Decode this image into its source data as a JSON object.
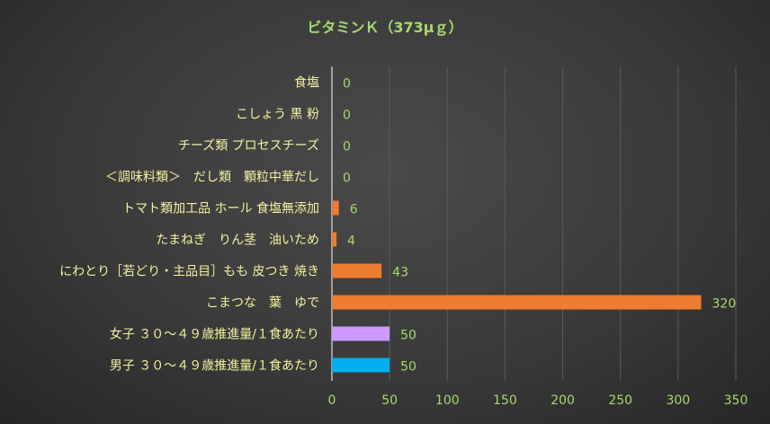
{
  "chart_data": {
    "type": "bar",
    "orientation": "horizontal",
    "title": "ビタミンＫ（373μｇ）",
    "categories": [
      "食塩",
      "こしょう 黒 粉",
      "チーズ類 プロセスチーズ",
      "＜調味料類＞　だし類　顆粒中華だし",
      "トマト類加工品 ホール 食塩無添加",
      "たまねぎ　りん茎　油いため",
      "にわとり［若どり・主品目］もも 皮つき 焼き",
      "こまつな　葉　ゆで",
      "女子 ３０～４９歳推進量/１食あたり",
      "男子 ３０～４９歳推進量/１食あたり"
    ],
    "values": [
      0,
      0,
      0,
      0,
      6,
      4,
      43,
      320,
      50,
      50
    ],
    "value_labels": [
      "0",
      "0",
      "0",
      "0",
      "6",
      "4",
      "43",
      "320",
      "50",
      "50"
    ],
    "bar_colors": [
      "#ed7d31",
      "#ed7d31",
      "#ed7d31",
      "#ed7d31",
      "#ed7d31",
      "#ed7d31",
      "#ed7d31",
      "#ed7d31",
      "#cc99ff",
      "#00b0f0"
    ],
    "xlim": [
      0,
      350
    ],
    "xticks": [
      0,
      50,
      100,
      150,
      200,
      250,
      300,
      350
    ],
    "xtick_labels": [
      "0",
      "50",
      "100",
      "150",
      "200",
      "250",
      "300",
      "350"
    ],
    "grid": true,
    "legend": "none"
  }
}
